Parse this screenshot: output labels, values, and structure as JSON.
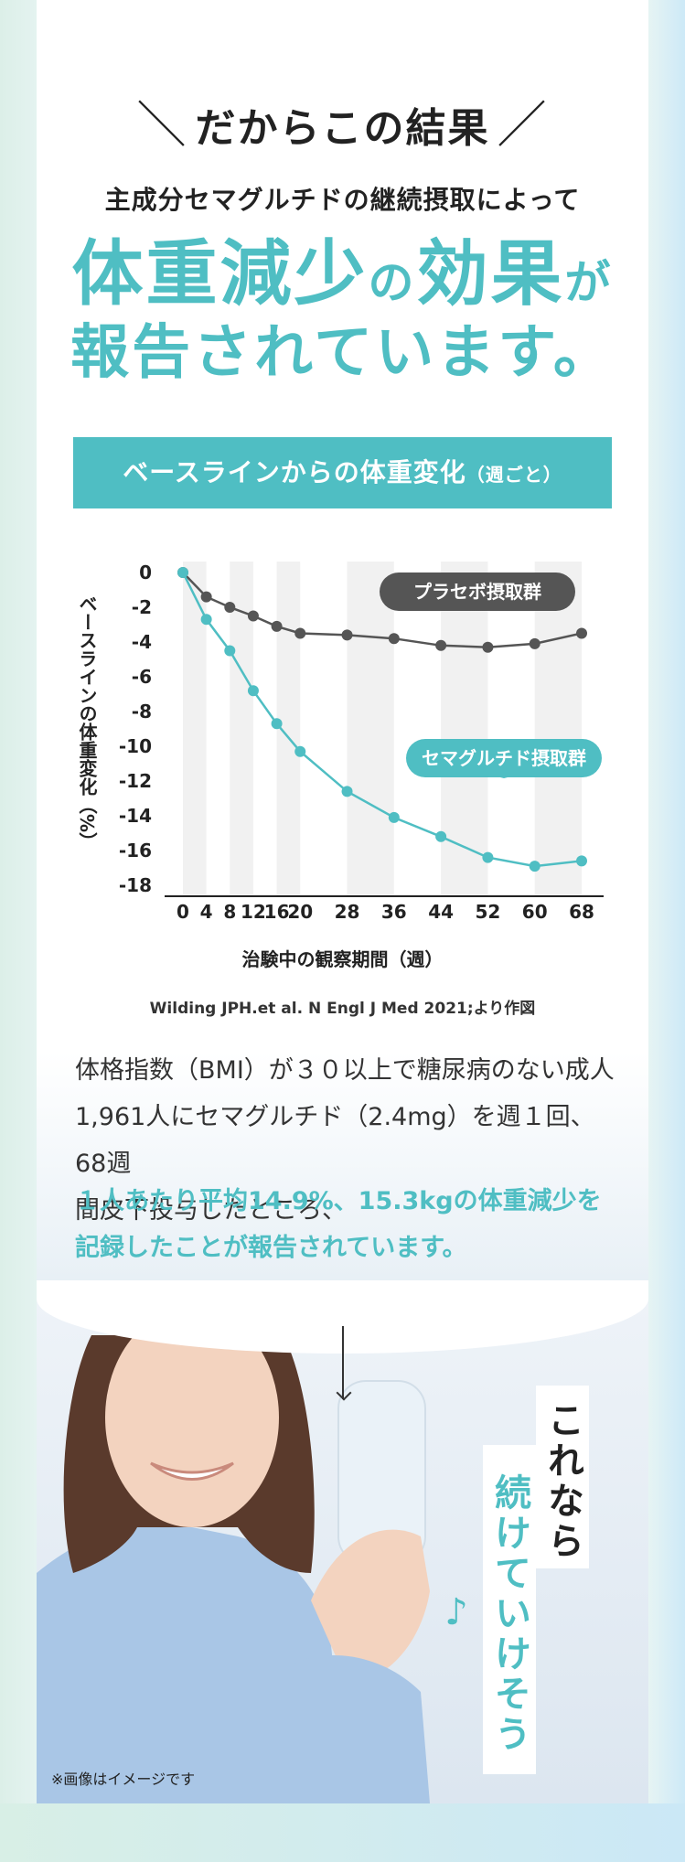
{
  "intro": {
    "slash_left": "＼",
    "text": "だからこの結果",
    "slash_right": "／"
  },
  "subtitle": "主成分セマグルチドの継続摂取によって",
  "headline": {
    "line1_a": "体重減少",
    "line1_b": "の",
    "line1_c": "効果",
    "line1_d": "が",
    "line2": "報告されています。"
  },
  "chart_header": {
    "title": "ベースラインからの体重変化",
    "suffix": "（週ごと）"
  },
  "chart_data": {
    "type": "line",
    "title": "ベースラインからの体重変化（週ごと）",
    "xlabel": "治験中の観察期間（週）",
    "ylabel": "ベースラインの体重変化（%）",
    "x_ticks": [
      0,
      4,
      8,
      12,
      16,
      20,
      28,
      36,
      44,
      52,
      60,
      68
    ],
    "y_ticks": [
      0,
      -2,
      -4,
      -6,
      -8,
      -10,
      -12,
      -14,
      -16,
      -18
    ],
    "ylim": [
      -18,
      0
    ],
    "series": [
      {
        "name": "プラセボ摂取群",
        "color": "#555555",
        "x": [
          0,
          4,
          8,
          12,
          16,
          20,
          28,
          36,
          44,
          52,
          60,
          68
        ],
        "values": [
          0,
          -1.4,
          -2.0,
          -2.5,
          -3.1,
          -3.5,
          -3.6,
          -3.8,
          -4.2,
          -4.3,
          -4.1,
          -3.5
        ]
      },
      {
        "name": "セマグルチド摂取群",
        "color": "#4fbec3",
        "x": [
          0,
          4,
          8,
          12,
          16,
          20,
          28,
          36,
          44,
          52,
          60,
          68
        ],
        "values": [
          0,
          -2.7,
          -4.5,
          -6.8,
          -8.7,
          -10.3,
          -12.6,
          -14.1,
          -15.2,
          -16.4,
          -16.9,
          -16.6
        ]
      }
    ],
    "grid": "alternating vertical bands",
    "legend": "callout labels on lines"
  },
  "source": "Wilding JPH.et al. N Engl J Med 2021;より作図",
  "body": {
    "line1": "体格指数（BMI）が３０以上で糖尿病のない成人",
    "line2": "1,961人にセマグルチド（2.4mg）を週１回、68週",
    "line3": "間皮下投与したところ、",
    "highlight1": "１人あたり平均14.9%、15.3kgの体重減少を",
    "highlight2": "記録したことが報告されています。"
  },
  "bubble1": "これなら",
  "bubble2": "続けていけそう♪",
  "note": "※画像はイメージです",
  "colors": {
    "accent": "#4fbec3",
    "placebo": "#555555"
  }
}
